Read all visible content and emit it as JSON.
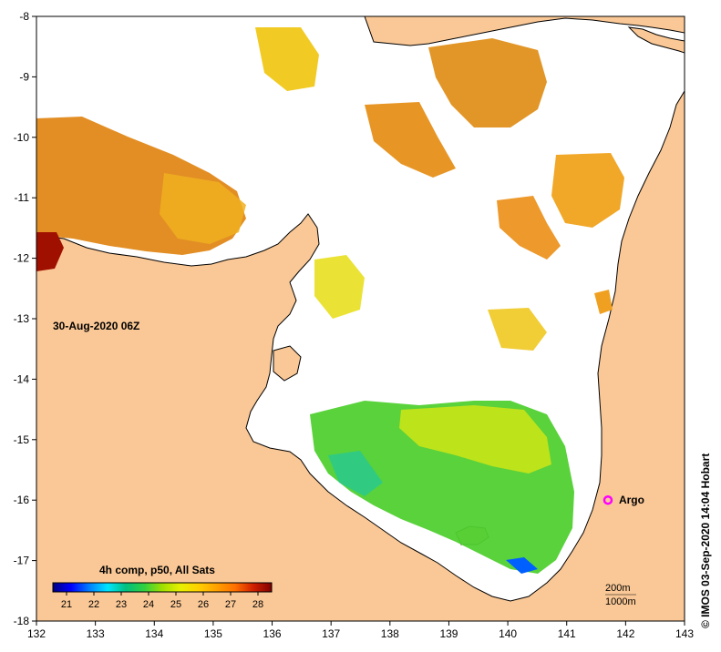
{
  "map": {
    "timestamp": "30-Aug-2020 06Z",
    "composite_label": "4h comp, p50, All Sats",
    "credit": "© IMOS 03-Sep-2020 14:04 Hobart",
    "lon_ticks": [
      "132",
      "133",
      "134",
      "135",
      "136",
      "137",
      "138",
      "139",
      "140",
      "141",
      "142",
      "143"
    ],
    "lat_ticks": [
      "-8",
      "-9",
      "-10",
      "-11",
      "-12",
      "-13",
      "-14",
      "-15",
      "-16",
      "-17",
      "-18"
    ],
    "colorbar": {
      "ticks": [
        "21",
        "22",
        "23",
        "24",
        "25",
        "26",
        "27",
        "28"
      ],
      "min": 20.5,
      "max": 28.5,
      "stops": [
        "#00007f",
        "#0000ff",
        "#007fff",
        "#00e5ff",
        "#00c080",
        "#30d040",
        "#a0e000",
        "#e8f000",
        "#ffd000",
        "#ffa000",
        "#ff7000",
        "#d02000",
        "#800000"
      ]
    },
    "argo": {
      "label": "Argo",
      "lon": 141.7,
      "lat": -16.0,
      "color": "#ff00ff"
    },
    "depth_contours": [
      "200m",
      "1000m"
    ],
    "colors": {
      "land": "#fac896",
      "coast": "#000000",
      "no_data": "#ffffff"
    }
  }
}
